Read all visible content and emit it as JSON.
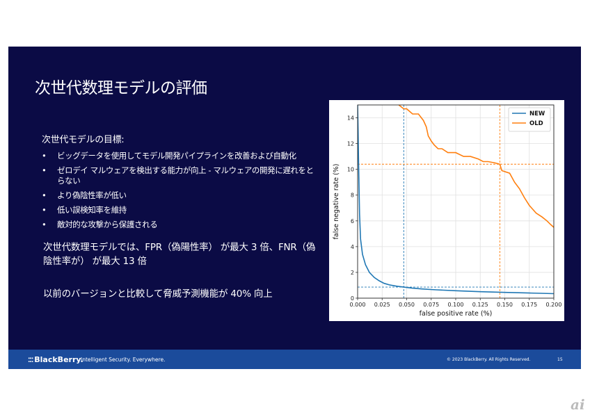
{
  "slide": {
    "title": "次世代数理モデルの評価",
    "goals_heading": "次世代モデルの目標:",
    "bullets": [
      "ビッグデータを使用してモデル開発パイプラインを改善および自動化",
      "ゼロデイ マルウェアを検出する能力が向上 - マルウェアの開発に遅れをとらない",
      "より偽陰性率が低い",
      "低い誤検知率を維持",
      "敵対的な攻撃から保護される"
    ],
    "para1": "次世代数理モデルでは、FPR（偽陽性率） が最大 3 倍、FNR（偽陰性率が） が最大 13 倍",
    "para2": "以前のバージョンと比較して脅威予測機能が 40% 向上"
  },
  "footer": {
    "brand": "BlackBerry.",
    "tagline": "Intelligent Security. Everywhere.",
    "copyright": "© 2023 BlackBerry. All Rights Reserved.",
    "page": "15"
  },
  "watermark": "ai",
  "colors": {
    "new": "#1f77b4",
    "old": "#ff7f0e",
    "background": "#0b0b45",
    "footer": "#1b4b9b"
  },
  "chart_data": {
    "type": "line",
    "xlabel": "false positive rate (%)",
    "ylabel": "false negative rate (%)",
    "xlim": [
      0,
      0.2
    ],
    "ylim": [
      0,
      15
    ],
    "x_ticks": [
      "0.000",
      "0.025",
      "0.050",
      "0.075",
      "0.100",
      "0.125",
      "0.150",
      "0.175",
      "0.200"
    ],
    "y_ticks": [
      "0",
      "2",
      "4",
      "6",
      "8",
      "10",
      "12",
      "14"
    ],
    "grid": true,
    "legend_placement": "top-right",
    "series": [
      {
        "name": "NEW",
        "x": [
          0.0,
          0.0005,
          0.001,
          0.002,
          0.003,
          0.005,
          0.008,
          0.012,
          0.017,
          0.022,
          0.027,
          0.033,
          0.04,
          0.047,
          0.055,
          0.065,
          0.08,
          0.1,
          0.125,
          0.15,
          0.175,
          0.2
        ],
        "y": [
          15.0,
          13.0,
          10.5,
          6.5,
          4.6,
          3.4,
          2.6,
          2.0,
          1.6,
          1.35,
          1.15,
          1.02,
          0.93,
          0.86,
          0.79,
          0.72,
          0.65,
          0.58,
          0.5,
          0.45,
          0.4,
          0.35
        ]
      },
      {
        "name": "OLD",
        "x": [
          0.042,
          0.047,
          0.05,
          0.056,
          0.062,
          0.067,
          0.07,
          0.072,
          0.075,
          0.078,
          0.082,
          0.086,
          0.092,
          0.1,
          0.108,
          0.115,
          0.123,
          0.128,
          0.133,
          0.14,
          0.145,
          0.147,
          0.155,
          0.16,
          0.165,
          0.17,
          0.175,
          0.182,
          0.188,
          0.193,
          0.197,
          0.2
        ],
        "y": [
          15.0,
          14.7,
          14.7,
          14.3,
          14.3,
          13.8,
          13.3,
          12.6,
          12.2,
          11.9,
          11.6,
          11.6,
          11.3,
          11.3,
          11.0,
          11.0,
          10.8,
          10.6,
          10.6,
          10.5,
          10.4,
          9.9,
          9.7,
          9.0,
          8.5,
          7.8,
          7.2,
          6.6,
          6.3,
          6.0,
          5.7,
          5.5
        ]
      }
    ],
    "reference_lines": {
      "new": {
        "x": 0.047,
        "y": 0.86
      },
      "old": {
        "x": 0.145,
        "y": 10.4
      }
    }
  }
}
